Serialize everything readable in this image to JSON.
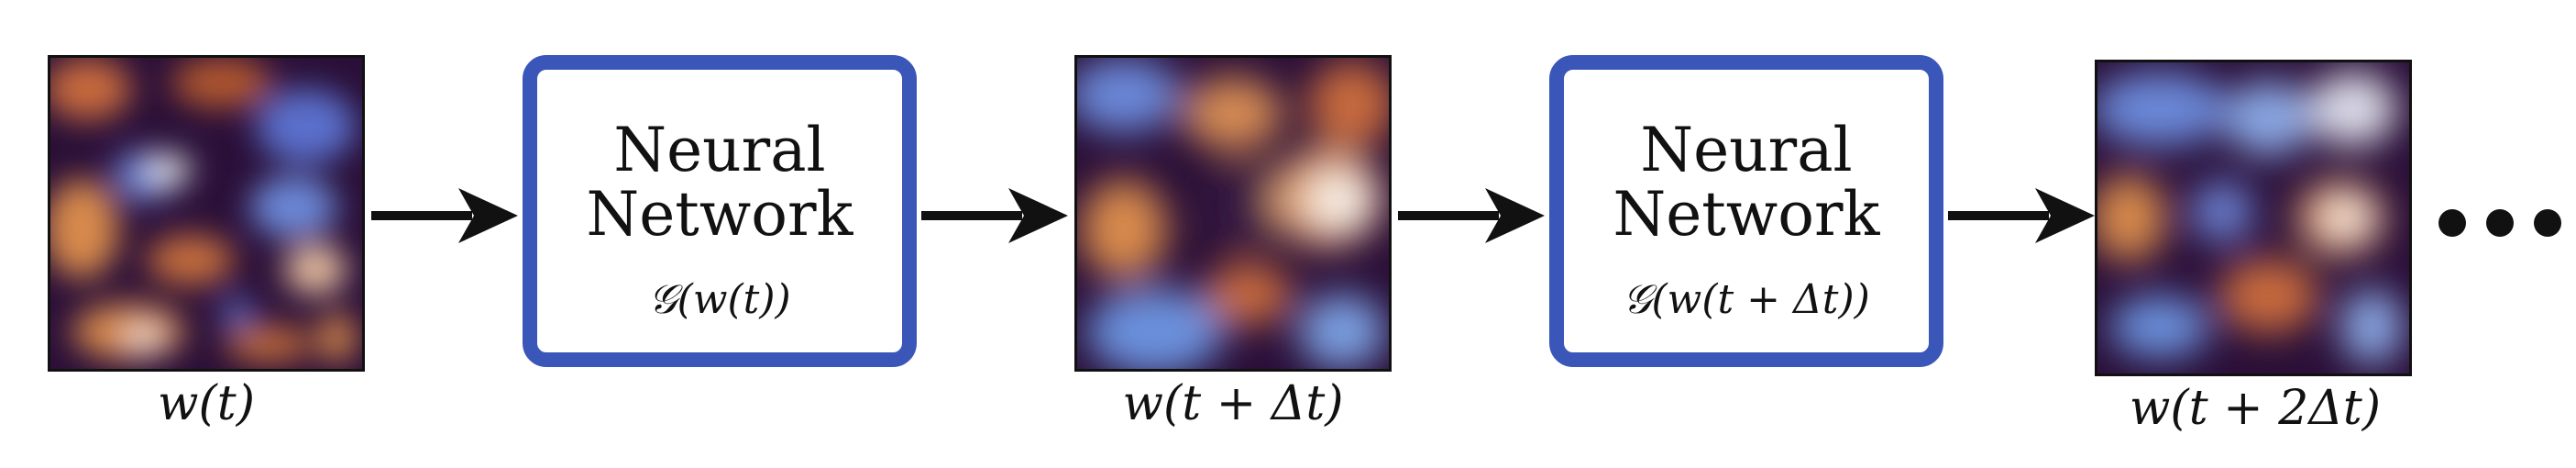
{
  "stages": [
    {
      "label": "w(t)"
    },
    {
      "label": "w(t + Δt)"
    },
    {
      "label": "w(t + 2Δt)"
    }
  ],
  "networks": [
    {
      "title_line1": "Neural",
      "title_line2": "Network",
      "formula": "𝒢(w(t))"
    },
    {
      "title_line1": "Neural",
      "title_line2": "Network",
      "formula": "𝒢(w(t + Δt))"
    }
  ],
  "colors": {
    "box_border": "#3a56b8",
    "field_dark": "#1a0a2e",
    "field_orange": "#d9864a",
    "field_blue": "#5a7cd4",
    "field_light": "#f4f4ee"
  },
  "ellipsis": "…"
}
